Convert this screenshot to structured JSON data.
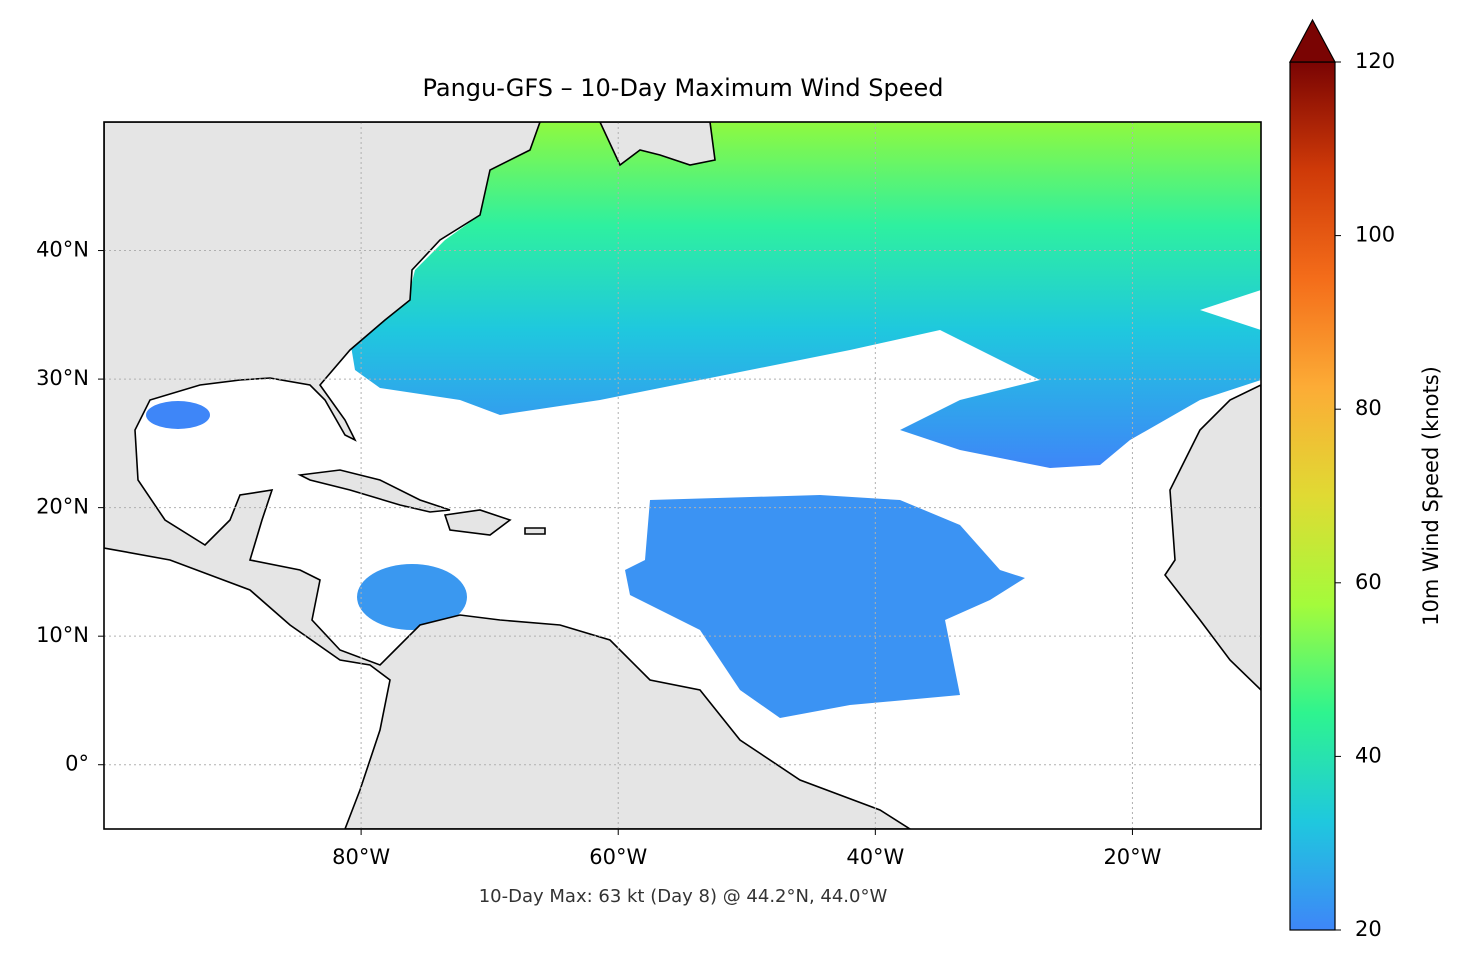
{
  "chart_data": {
    "type": "map",
    "title": "Pangu-GFS – 10-Day Maximum Wind Speed",
    "annotation": "10-Day Max: 63 kt (Day 8) @ 44.2°N, 44.0°W",
    "xlim": [
      -100,
      -10
    ],
    "ylim": [
      -5,
      50
    ],
    "xticks": [
      {
        "value": -80,
        "label": "80°W"
      },
      {
        "value": -60,
        "label": "60°W"
      },
      {
        "value": -40,
        "label": "40°W"
      },
      {
        "value": -20,
        "label": "20°W"
      }
    ],
    "yticks": [
      {
        "value": 0,
        "label": "0°"
      },
      {
        "value": 10,
        "label": "10°N"
      },
      {
        "value": 20,
        "label": "20°N"
      },
      {
        "value": 30,
        "label": "30°N"
      },
      {
        "value": 40,
        "label": "40°N"
      }
    ],
    "grid": true,
    "colorbar": {
      "label": "10m Wind Speed (knots)",
      "lim": [
        20,
        120
      ],
      "ticks": [
        20,
        40,
        60,
        80,
        100,
        120
      ],
      "colors": [
        "#3e86f8",
        "#1fc8de",
        "#2ef48f",
        "#a4fb3b",
        "#e0da33",
        "#fcac36",
        "#f46d1a",
        "#cf3a08",
        "#7a0403"
      ]
    }
  }
}
